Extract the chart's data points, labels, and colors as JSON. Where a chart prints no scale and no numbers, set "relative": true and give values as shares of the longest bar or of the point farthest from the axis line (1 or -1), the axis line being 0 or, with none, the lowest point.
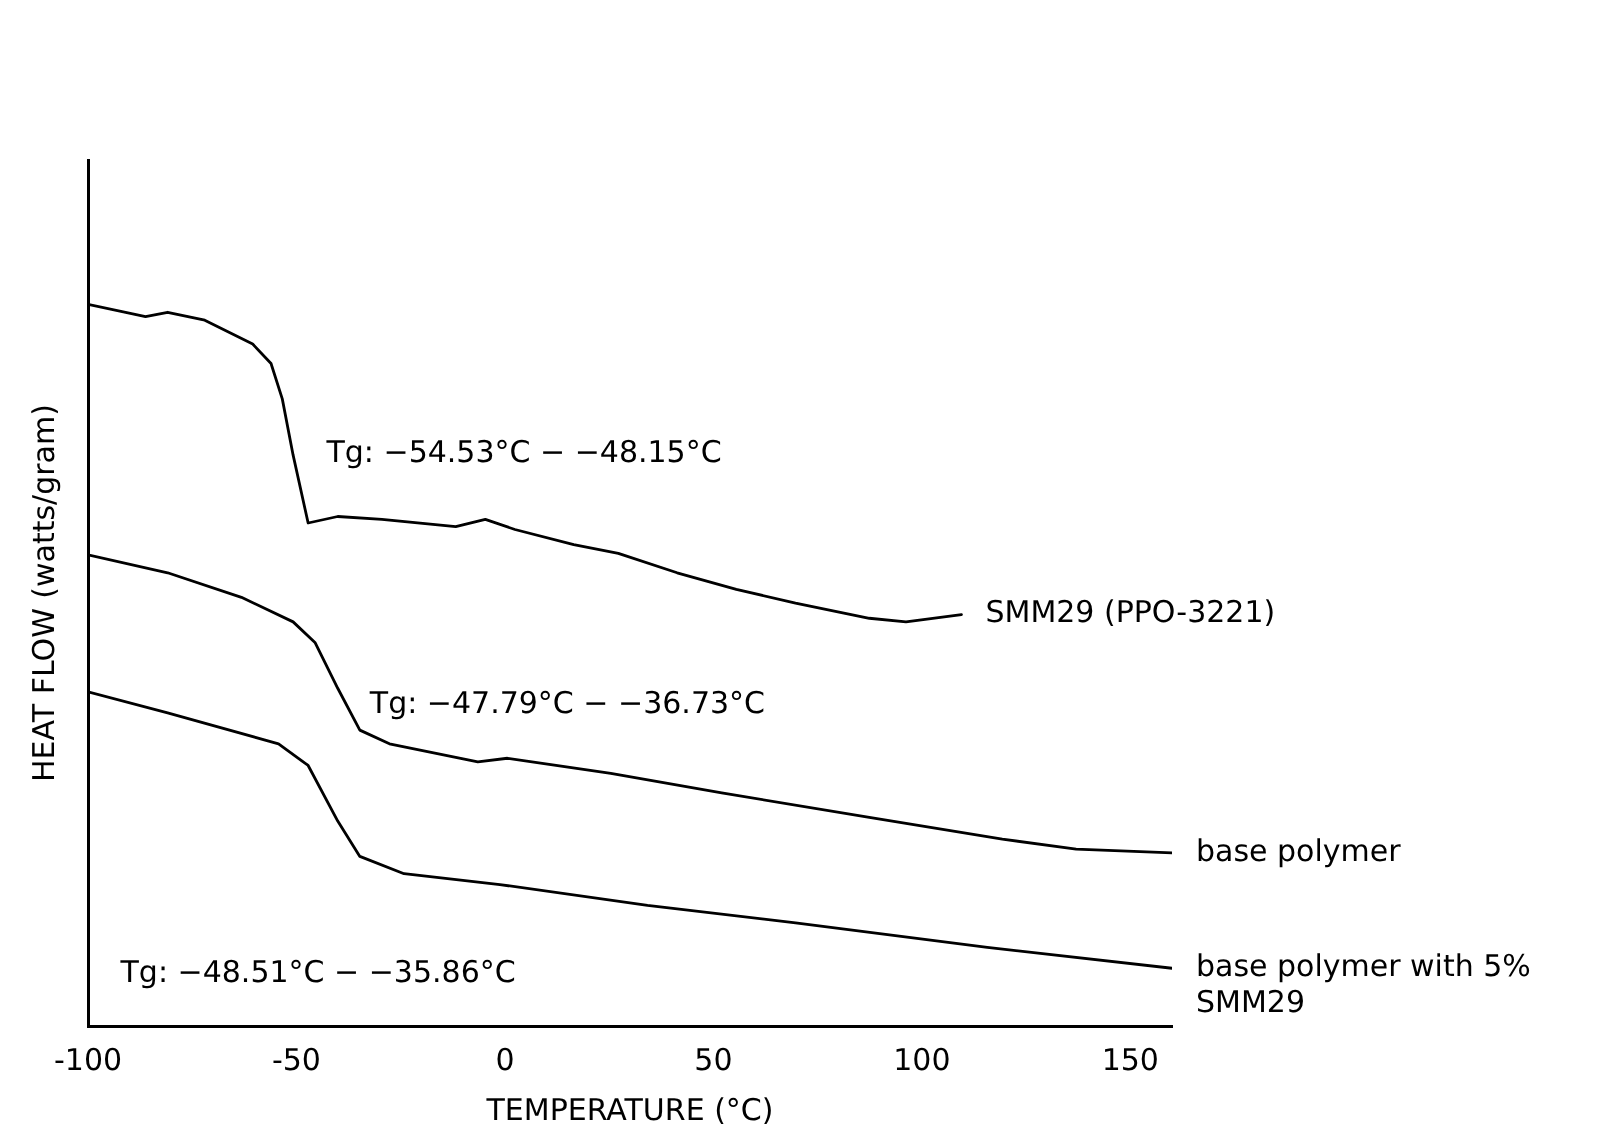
{
  "chart_data": {
    "type": "line",
    "relative": true,
    "xlabel": "TEMPERATURE (°C)",
    "ylabel": "HEAT FLOW (watts/gram)",
    "xlim": [
      -100,
      160
    ],
    "xticks": [
      -100,
      -50,
      0,
      50,
      100,
      150
    ],
    "grid": false,
    "legend": false,
    "marker": "none",
    "line_style": "solid",
    "annotations": [
      "Tg: −54.53°C − −48.15°C",
      "Tg: −47.79°C − −36.73°C",
      "Tg: −48.51°C − −35.86°C"
    ],
    "series": [
      {
        "name": "SMM29 (PPO-3221)",
        "color": "#000000",
        "x": [
          -100,
          -86.2,
          -80.9,
          -72.0,
          -60.5,
          -56.1,
          -53.4,
          -50.8,
          -47.2,
          -40.1,
          -29.5,
          -11.8,
          -4.7,
          2.4,
          16.5,
          27.2,
          41.3,
          55.5,
          69.7,
          87.4,
          96.2,
          109.5
        ],
        "values": [
          1.0,
          0.983,
          0.989,
          0.978,
          0.945,
          0.918,
          0.869,
          0.791,
          0.697,
          0.706,
          0.702,
          0.692,
          0.702,
          0.688,
          0.667,
          0.655,
          0.628,
          0.605,
          0.586,
          0.565,
          0.56,
          0.57
        ]
      },
      {
        "name": "base polymer",
        "color": "#000000",
        "x": [
          -100,
          -80.9,
          -63.2,
          -50.8,
          -45.5,
          -40.1,
          -34.8,
          -27.7,
          -6.5,
          0.6,
          25.4,
          52.0,
          87.4,
          119.3,
          137.0,
          160
        ],
        "values": [
          0.653,
          0.628,
          0.594,
          0.56,
          0.531,
          0.468,
          0.41,
          0.391,
          0.366,
          0.371,
          0.35,
          0.323,
          0.289,
          0.259,
          0.245,
          0.24
        ]
      },
      {
        "name": "base polymer with 5% SMM29",
        "color": "#000000",
        "x": [
          -100,
          -80.9,
          -54.3,
          -47.2,
          -40.1,
          -34.8,
          -24.2,
          -1.2,
          34.2,
          69.7,
          115.7,
          160
        ],
        "values": [
          0.463,
          0.434,
          0.391,
          0.361,
          0.284,
          0.235,
          0.211,
          0.196,
          0.167,
          0.143,
          0.109,
          0.08
        ]
      }
    ]
  }
}
